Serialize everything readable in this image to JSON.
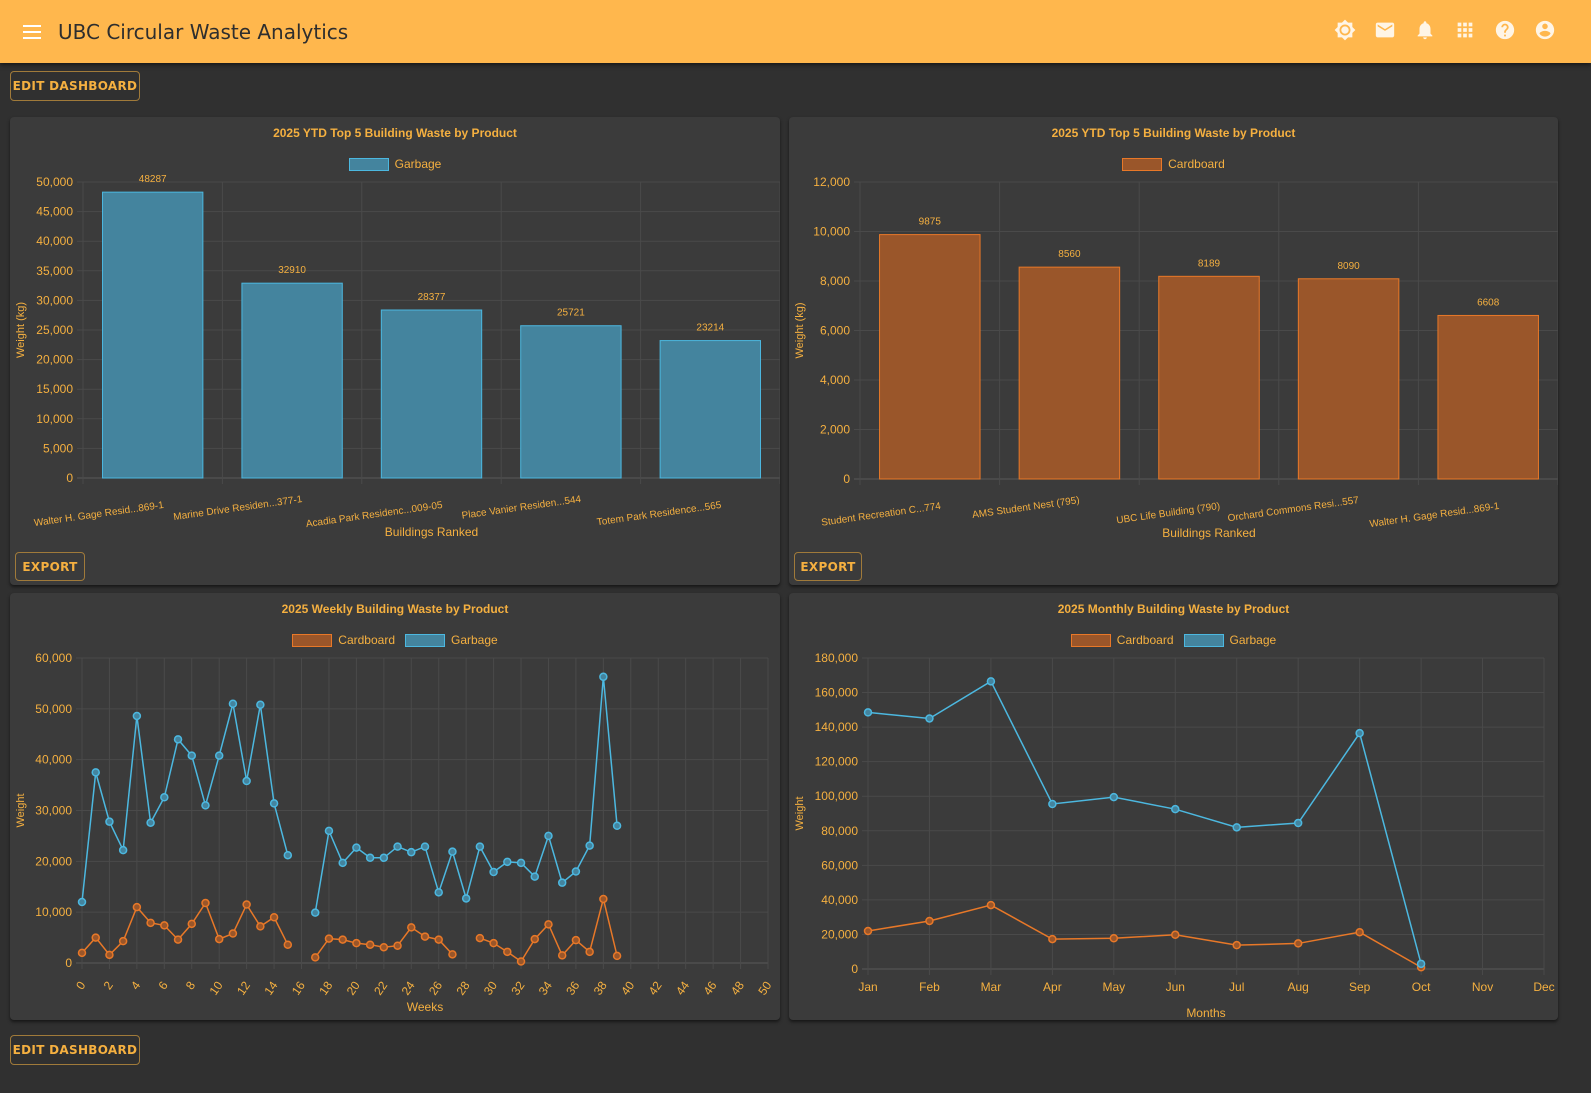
{
  "app": {
    "title": "UBC Circular Waste Analytics",
    "menu_icon": "hamburger-menu-icon",
    "toolbar_icons": [
      "brightness-icon",
      "mail-icon",
      "bell-icon",
      "apps-grid-icon",
      "help-icon",
      "account-icon"
    ]
  },
  "buttons": {
    "edit_dashboard_top": "EDIT DASHBOARD",
    "edit_dashboard_bottom": "EDIT DASHBOARD",
    "export": "EXPORT"
  },
  "colors": {
    "accent": "#ffb74d",
    "text": "#f5b040",
    "garbage": "#4cb8e0",
    "garbage_fill": "#44849e",
    "cardboard": "#e87828",
    "cardboard_fill": "#9a562a",
    "card_bg": "#3b3b3b",
    "page_bg": "#303030"
  },
  "chart_data": [
    {
      "id": "garbage-top5",
      "type": "bar",
      "title": "2025 YTD Top 5 Building Waste by Product",
      "legend": [
        "Garbage"
      ],
      "legend_position": "top",
      "xlabel": "Buildings Ranked",
      "ylabel": "Weight (kg)",
      "ylim": [
        0,
        50000
      ],
      "yticks": [
        0,
        5000,
        10000,
        15000,
        20000,
        25000,
        30000,
        35000,
        40000,
        45000,
        50000
      ],
      "ytick_labels": [
        "0",
        "5,000",
        "10,000",
        "15,000",
        "20,000",
        "25,000",
        "30,000",
        "35,000",
        "40,000",
        "45,000",
        "50,000"
      ],
      "categories": [
        "Walter H. Gage Resid...869-1",
        "Marine Drive Residen...377-1",
        "Acadia Park Residenc...009-05",
        "Place Vanier Residen...544",
        "Totem Park Residence...565"
      ],
      "values": [
        48287,
        32910,
        28377,
        25721,
        23214
      ],
      "data_labels": [
        "48287",
        "32910",
        "28377",
        "25721",
        "23214"
      ],
      "grid": true
    },
    {
      "id": "cardboard-top5",
      "type": "bar",
      "title": "2025 YTD Top 5 Building Waste by Product",
      "legend": [
        "Cardboard"
      ],
      "legend_position": "top",
      "xlabel": "Buildings Ranked",
      "ylabel": "Weight (kg)",
      "ylim": [
        0,
        12000
      ],
      "yticks": [
        0,
        2000,
        4000,
        6000,
        8000,
        10000,
        12000
      ],
      "ytick_labels": [
        "0",
        "2,000",
        "4,000",
        "6,000",
        "8,000",
        "10,000",
        "12,000"
      ],
      "categories": [
        "Student Recreation C...774",
        "AMS Student Nest (795)",
        "UBC Life Building (790)",
        "Orchard Commons Resi...557",
        "Walter H. Gage Resid...869-1"
      ],
      "values": [
        9875,
        8560,
        8189,
        8090,
        6608
      ],
      "data_labels": [
        "9875",
        "8560",
        "8189",
        "8090",
        "6608"
      ],
      "grid": true
    },
    {
      "id": "weekly",
      "type": "line",
      "title": "2025 Weekly Building Waste by Product",
      "legend": [
        "Cardboard",
        "Garbage"
      ],
      "legend_position": "top",
      "xlabel": "Weeks",
      "ylabel": "Weight",
      "xlim": [
        0,
        50
      ],
      "xticks": [
        0,
        2,
        4,
        6,
        8,
        10,
        12,
        14,
        16,
        18,
        20,
        22,
        24,
        26,
        28,
        30,
        32,
        34,
        36,
        38,
        40,
        42,
        44,
        46,
        48,
        50
      ],
      "ylim": [
        0,
        60000
      ],
      "yticks": [
        0,
        10000,
        20000,
        30000,
        40000,
        50000,
        60000
      ],
      "ytick_labels": [
        "0",
        "10,000",
        "20,000",
        "30,000",
        "40,000",
        "50,000",
        "60,000"
      ],
      "x": [
        0,
        1,
        2,
        3,
        4,
        5,
        6,
        7,
        8,
        9,
        10,
        11,
        12,
        13,
        14,
        15,
        16,
        17,
        18,
        19,
        20,
        21,
        22,
        23,
        24,
        25,
        26,
        27,
        28,
        29,
        30,
        31,
        32,
        33,
        34,
        35,
        36,
        37,
        38,
        39
      ],
      "series": [
        {
          "name": "Cardboard",
          "values": [
            2000,
            5000,
            1600,
            4300,
            11000,
            7900,
            7400,
            4600,
            7700,
            11800,
            4700,
            5800,
            11500,
            7200,
            9000,
            3600,
            null,
            1100,
            4800,
            4600,
            3900,
            3600,
            3100,
            3400,
            7000,
            5200,
            4600,
            1700,
            null,
            4900,
            3900,
            2200,
            300,
            4700,
            7600,
            1500,
            4500,
            2200,
            12600,
            1400
          ]
        },
        {
          "name": "Garbage",
          "values": [
            12000,
            37500,
            27800,
            22200,
            48600,
            27600,
            32600,
            44000,
            40800,
            31000,
            40800,
            51000,
            35800,
            50800,
            31400,
            21200,
            null,
            9900,
            26000,
            19700,
            22700,
            20700,
            20700,
            22900,
            21800,
            22900,
            13900,
            21900,
            12700,
            22900,
            17900,
            19900,
            19700,
            17000,
            25000,
            15800,
            18000,
            23100,
            56300,
            27000
          ]
        }
      ],
      "grid": true
    },
    {
      "id": "monthly",
      "type": "line",
      "title": "2025 Monthly Building Waste by Product",
      "legend": [
        "Cardboard",
        "Garbage"
      ],
      "legend_position": "top",
      "xlabel": "Months",
      "ylabel": "Weight",
      "categories": [
        "Jan",
        "Feb",
        "Mar",
        "Apr",
        "May",
        "Jun",
        "Jul",
        "Aug",
        "Sep",
        "Oct",
        "Nov",
        "Dec"
      ],
      "ylim": [
        0,
        180000
      ],
      "yticks": [
        0,
        20000,
        40000,
        60000,
        80000,
        100000,
        120000,
        140000,
        160000,
        180000
      ],
      "ytick_labels": [
        "0",
        "20,000",
        "40,000",
        "60,000",
        "80,000",
        "100,000",
        "120,000",
        "140,000",
        "160,000",
        "180,000"
      ],
      "series": [
        {
          "name": "Cardboard",
          "values": [
            22000,
            27800,
            37000,
            17300,
            17800,
            19800,
            13800,
            14800,
            21300,
            1000,
            null,
            null
          ]
        },
        {
          "name": "Garbage",
          "values": [
            148500,
            145000,
            166500,
            95500,
            99500,
            92500,
            82000,
            84500,
            136500,
            3000,
            null,
            null
          ]
        }
      ],
      "grid": true
    }
  ]
}
